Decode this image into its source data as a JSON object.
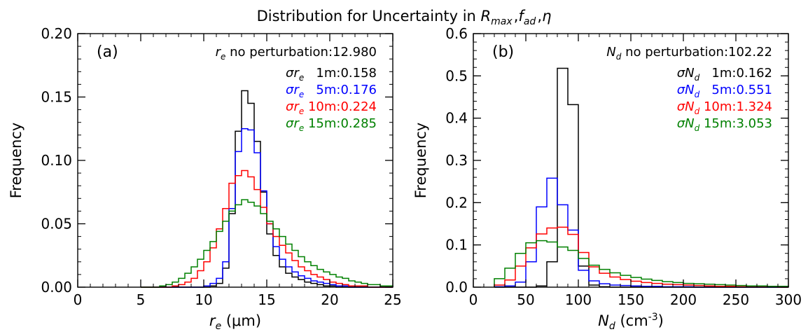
{
  "figure": {
    "title_prefix": "Distribution for Uncertainty in ",
    "title_parts": [
      {
        "main": "R",
        "sub": "max"
      },
      {
        "sep": ","
      },
      {
        "main": "f",
        "sub": "ad"
      },
      {
        "sep": ","
      },
      {
        "main": "η",
        "sub": ""
      }
    ]
  },
  "chart_data": [
    {
      "type": "histogram",
      "panel_label": "(a)",
      "xlabel": {
        "main": "r",
        "sub": "e",
        "unit": " (μm)"
      },
      "ylabel": "Frequency",
      "xlim": [
        0,
        25
      ],
      "ylim": [
        0,
        0.2
      ],
      "xticks": [
        0,
        5,
        10,
        15,
        20,
        25
      ],
      "xtick_labels": [
        "0",
        "5",
        "10",
        "15",
        "20",
        "25"
      ],
      "yticks": [
        0,
        0.05,
        0.1,
        0.15,
        0.2
      ],
      "ytick_labels": [
        "0.00",
        "0.05",
        "0.10",
        "0.15",
        "0.20"
      ],
      "x_minor_step": 1,
      "y_minor_step": 0.01,
      "bin_start": 5,
      "bin_width": 0.5,
      "header": {
        "main": "r",
        "sub": "e",
        "text": " no perturbation:12.980"
      },
      "series": [
        {
          "name": "1m",
          "color": "#000000",
          "stat_label": {
            "main": "σr",
            "sub": "e",
            "text": "   1m:0.158"
          },
          "values": [
            0.0,
            0.0,
            0.0,
            0.0,
            0.0,
            0.0,
            0.0,
            0.0,
            0.0,
            0.0,
            0.0,
            0.001,
            0.003,
            0.015,
            0.058,
            0.123,
            0.155,
            0.145,
            0.115,
            0.075,
            0.042,
            0.025,
            0.016,
            0.011,
            0.008,
            0.006,
            0.004,
            0.003,
            0.002,
            0.001,
            0.001,
            0.0,
            0.0,
            0.0,
            0.0,
            0.0,
            0.0,
            0.0,
            0.0,
            0.0
          ]
        },
        {
          "name": "5m",
          "color": "#0000ff",
          "stat_label": {
            "main": "σr",
            "sub": "e",
            "text": "   5m:0.176"
          },
          "values": [
            0.0,
            0.0,
            0.0,
            0.0,
            0.0,
            0.0,
            0.0,
            0.0,
            0.0,
            0.0,
            0.001,
            0.003,
            0.007,
            0.02,
            0.062,
            0.107,
            0.125,
            0.124,
            0.106,
            0.076,
            0.05,
            0.032,
            0.022,
            0.016,
            0.012,
            0.009,
            0.007,
            0.005,
            0.004,
            0.003,
            0.002,
            0.001,
            0.001,
            0.0,
            0.0,
            0.0,
            0.0,
            0.0,
            0.0,
            0.0
          ]
        },
        {
          "name": "10m",
          "color": "#ff0000",
          "stat_label": {
            "main": "σr",
            "sub": "e",
            "text": " 10m:0.224"
          },
          "values": [
            0.0,
            0.0,
            0.0,
            0.0,
            0.0,
            0.001,
            0.002,
            0.004,
            0.007,
            0.013,
            0.02,
            0.031,
            0.046,
            0.062,
            0.082,
            0.088,
            0.092,
            0.087,
            0.077,
            0.063,
            0.05,
            0.04,
            0.033,
            0.027,
            0.021,
            0.016,
            0.013,
            0.01,
            0.008,
            0.006,
            0.004,
            0.003,
            0.002,
            0.001,
            0.001,
            0.001,
            0.0,
            0.0,
            0.0,
            0.0
          ]
        },
        {
          "name": "15m",
          "color": "#008000",
          "stat_label": {
            "main": "σr",
            "sub": "e",
            "text": " 15m:0.285"
          },
          "values": [
            0.0,
            0.0,
            0.0,
            0.001,
            0.002,
            0.004,
            0.007,
            0.011,
            0.016,
            0.022,
            0.029,
            0.036,
            0.044,
            0.052,
            0.06,
            0.065,
            0.069,
            0.067,
            0.064,
            0.058,
            0.052,
            0.046,
            0.04,
            0.034,
            0.029,
            0.024,
            0.02,
            0.017,
            0.014,
            0.012,
            0.01,
            0.008,
            0.007,
            0.005,
            0.004,
            0.003,
            0.002,
            0.002,
            0.001,
            0.001
          ]
        }
      ]
    },
    {
      "type": "histogram",
      "panel_label": "(b)",
      "xlabel": {
        "main": "N",
        "sub": "d",
        "unit": " (cm",
        "sup": "-3",
        "unit_end": ")"
      },
      "ylabel": "Frequency",
      "xlim": [
        0,
        300
      ],
      "ylim": [
        0,
        0.6
      ],
      "xticks": [
        0,
        50,
        100,
        150,
        200,
        250,
        300
      ],
      "xtick_labels": [
        "0",
        "50",
        "100",
        "150",
        "200",
        "250",
        "300"
      ],
      "yticks": [
        0,
        0.1,
        0.2,
        0.3,
        0.4,
        0.5,
        0.6
      ],
      "ytick_labels": [
        "0.0",
        "0.1",
        "0.2",
        "0.3",
        "0.4",
        "0.5",
        "0.6"
      ],
      "x_minor_step": 10,
      "y_minor_step": 0.02,
      "bin_start": 20,
      "bin_width": 10,
      "header": {
        "main": "N",
        "sub": "d",
        "text": " no perturbation:102.22"
      },
      "series": [
        {
          "name": "1m",
          "color": "#000000",
          "stat_label": {
            "main": "σN",
            "sub": "d",
            "text": "   1m:0.162"
          },
          "values": [
            0.0,
            0.0,
            0.0,
            0.0,
            0.003,
            0.06,
            0.518,
            0.432,
            0.05,
            0.005,
            0.001,
            0.0,
            0.0,
            0.0,
            0.0,
            0.0,
            0.0,
            0.0,
            0.0,
            0.0,
            0.0,
            0.0,
            0.0,
            0.0,
            0.0,
            0.0,
            0.0,
            0.0
          ]
        },
        {
          "name": "5m",
          "color": "#0000ff",
          "stat_label": {
            "main": "σN",
            "sub": "d",
            "text": "   5m:0.551"
          },
          "values": [
            0.001,
            0.003,
            0.012,
            0.06,
            0.19,
            0.258,
            0.195,
            0.135,
            0.04,
            0.015,
            0.008,
            0.005,
            0.004,
            0.003,
            0.002,
            0.002,
            0.001,
            0.001,
            0.001,
            0.0,
            0.0,
            0.0,
            0.0,
            0.0,
            0.0,
            0.0,
            0.0,
            0.0
          ]
        },
        {
          "name": "10m",
          "color": "#ff0000",
          "stat_label": {
            "main": "σN",
            "sub": "d",
            "text": " 10m:1.324"
          },
          "values": [
            0.005,
            0.017,
            0.05,
            0.093,
            0.126,
            0.14,
            0.142,
            0.125,
            0.082,
            0.048,
            0.033,
            0.024,
            0.018,
            0.014,
            0.011,
            0.009,
            0.007,
            0.006,
            0.005,
            0.004,
            0.003,
            0.002,
            0.002,
            0.001,
            0.001,
            0.001,
            0.001,
            0.0
          ]
        },
        {
          "name": "15m",
          "color": "#008000",
          "stat_label": {
            "main": "σN",
            "sub": "d",
            "text": " 15m:3.053"
          },
          "values": [
            0.02,
            0.045,
            0.08,
            0.105,
            0.11,
            0.107,
            0.095,
            0.087,
            0.068,
            0.052,
            0.042,
            0.034,
            0.028,
            0.023,
            0.019,
            0.016,
            0.013,
            0.011,
            0.009,
            0.008,
            0.007,
            0.006,
            0.005,
            0.004,
            0.003,
            0.003,
            0.002,
            0.002
          ]
        }
      ]
    }
  ]
}
